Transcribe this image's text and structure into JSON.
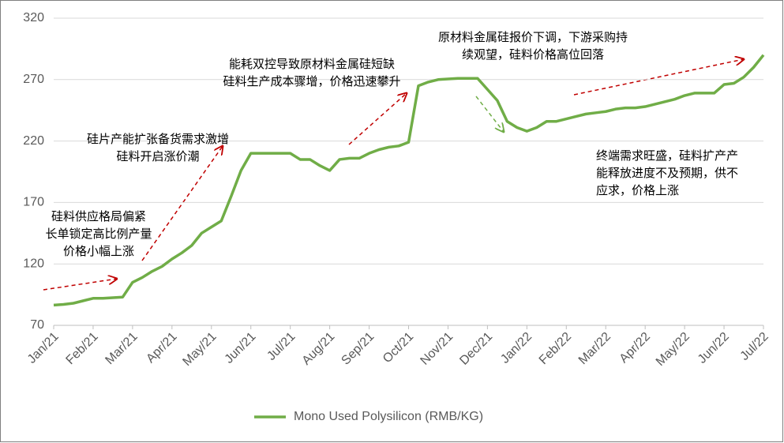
{
  "chart_data": {
    "type": "line",
    "annotations": [
      [
        "硅料供应格局偏紧",
        "长单锁定高比例产量",
        "价格小幅上涨"
      ],
      [
        "硅片产能扩张备货需求激增",
        "硅料开启涨价潮"
      ],
      [
        "能耗双控导致原材料金属硅短缺",
        "硅料生产成本骤增，价格迅速攀升"
      ],
      [
        "原材料金属硅报价下调，下游采购持",
        "续观望，硅料价格高位回落"
      ],
      [
        "终端需求旺盛，硅料扩产产",
        "能释放进度不及预期，供不",
        "应求，价格上涨"
      ]
    ],
    "categories": [
      "Jan/21",
      null,
      null,
      null,
      "Feb/21",
      null,
      null,
      null,
      "Mar/21",
      null,
      null,
      null,
      "Apr/21",
      null,
      null,
      null,
      "May/21",
      null,
      null,
      null,
      "Jun/21",
      null,
      null,
      null,
      "Jul/21",
      null,
      null,
      null,
      "Aug/21",
      null,
      null,
      null,
      "Sep/21",
      null,
      null,
      null,
      "Oct/21",
      null,
      null,
      null,
      "Nov/21",
      null,
      null,
      null,
      "Dec/21",
      null,
      null,
      null,
      "Jan/22",
      null,
      null,
      null,
      "Feb/22",
      null,
      null,
      null,
      "Mar/22",
      null,
      null,
      null,
      "Apr/22",
      null,
      null,
      null,
      "May/22",
      null,
      null,
      null,
      "Jun/22",
      null,
      null,
      null,
      "Jul/22"
    ],
    "series": [
      {
        "name": "Mono Used Polysilicon (RMB/KG)",
        "color": "#70ad47",
        "values": [
          86.5,
          87,
          88,
          90,
          92,
          92,
          92.5,
          93,
          105,
          109,
          114,
          118,
          124,
          129,
          135,
          145,
          150,
          155,
          175,
          196,
          210,
          210,
          210,
          210,
          210,
          205,
          205,
          200,
          196,
          205,
          206,
          206,
          210,
          213,
          215,
          216,
          219,
          265,
          268,
          270,
          270.5,
          271,
          271,
          271,
          262,
          253,
          236,
          231,
          228,
          231,
          236,
          236,
          238,
          240,
          242,
          243,
          244,
          246,
          247,
          247,
          248,
          250,
          252,
          254,
          257,
          259,
          259,
          259,
          266,
          267,
          272,
          280,
          290
        ]
      }
    ],
    "ylim": [
      70,
      320
    ],
    "yticks": [
      70,
      120,
      170,
      220,
      270,
      320
    ],
    "grid": true
  }
}
